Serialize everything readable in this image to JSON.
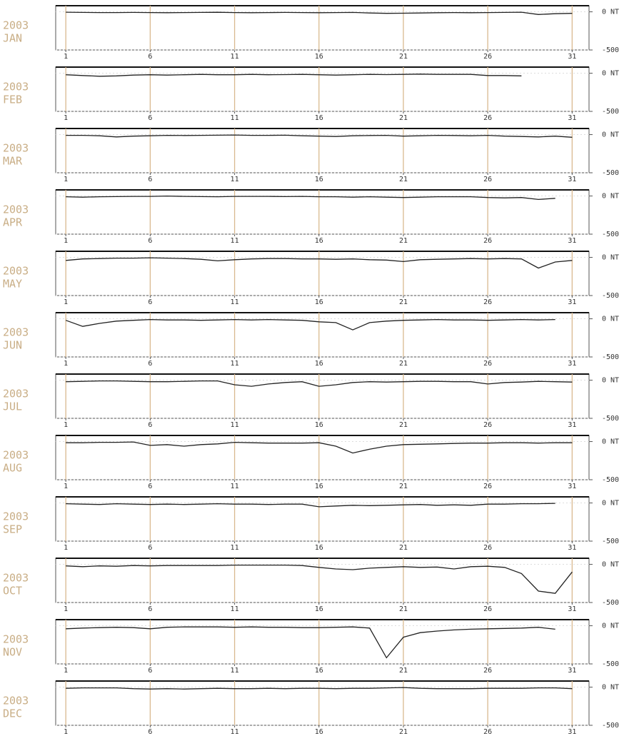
{
  "chart_data": [
    {
      "type": "line",
      "year": "2003",
      "title": "JAN",
      "color": "#222222",
      "xlim": [
        0.4,
        32
      ],
      "ylim": [
        -500,
        80
      ],
      "xticks": [
        1,
        6,
        11,
        16,
        21,
        26,
        31
      ],
      "yticks": [
        {
          "value": 0,
          "label": "0 NT"
        },
        {
          "value": -500,
          "label": "-500"
        }
      ],
      "grid": true,
      "x": [
        1,
        2,
        3,
        4,
        5,
        6,
        7,
        8,
        9,
        10,
        11,
        12,
        13,
        14,
        15,
        16,
        17,
        18,
        19,
        20,
        21,
        22,
        23,
        24,
        25,
        26,
        27,
        28,
        29,
        30,
        31
      ],
      "values": [
        -5,
        -8,
        -10,
        -10,
        -8,
        -10,
        -12,
        -10,
        -8,
        -6,
        -10,
        -12,
        -10,
        -8,
        -10,
        -12,
        -10,
        -8,
        -15,
        -20,
        -18,
        -15,
        -12,
        -10,
        -12,
        -10,
        -8,
        -5,
        -35,
        -25,
        -20
      ]
    },
    {
      "type": "line",
      "year": "2003",
      "title": "FEB",
      "color": "#222222",
      "xlim": [
        0.4,
        32
      ],
      "ylim": [
        -500,
        80
      ],
      "xticks": [
        1,
        6,
        11,
        16,
        21,
        26,
        31
      ],
      "yticks": [
        {
          "value": 0,
          "label": "0 NT"
        },
        {
          "value": -500,
          "label": "-500"
        }
      ],
      "grid": true,
      "x": [
        1,
        2,
        3,
        4,
        5,
        6,
        7,
        8,
        9,
        10,
        11,
        12,
        13,
        14,
        15,
        16,
        17,
        18,
        19,
        20,
        21,
        22,
        23,
        24,
        25,
        26,
        27,
        28
      ],
      "values": [
        -20,
        -30,
        -40,
        -35,
        -25,
        -20,
        -25,
        -20,
        -15,
        -20,
        -20,
        -15,
        -20,
        -18,
        -15,
        -20,
        -25,
        -20,
        -15,
        -18,
        -15,
        -12,
        -15,
        -15,
        -15,
        -30,
        -30,
        -35
      ]
    },
    {
      "type": "line",
      "year": "2003",
      "title": "MAR",
      "color": "#222222",
      "xlim": [
        0.4,
        32
      ],
      "ylim": [
        -500,
        80
      ],
      "xticks": [
        1,
        6,
        11,
        16,
        21,
        26,
        31
      ],
      "yticks": [
        {
          "value": 0,
          "label": "0 NT"
        },
        {
          "value": -500,
          "label": "-500"
        }
      ],
      "grid": true,
      "x": [
        1,
        2,
        3,
        4,
        5,
        6,
        7,
        8,
        9,
        10,
        11,
        12,
        13,
        14,
        15,
        16,
        17,
        18,
        19,
        20,
        21,
        22,
        23,
        24,
        25,
        26,
        27,
        28,
        29,
        30,
        31
      ],
      "values": [
        -10,
        -10,
        -15,
        -30,
        -20,
        -15,
        -10,
        -12,
        -10,
        -8,
        -5,
        -10,
        -10,
        -8,
        -15,
        -20,
        -25,
        -15,
        -12,
        -10,
        -20,
        -15,
        -10,
        -12,
        -15,
        -10,
        -20,
        -25,
        -30,
        -20,
        -35
      ]
    },
    {
      "type": "line",
      "year": "2003",
      "title": "APR",
      "color": "#222222",
      "xlim": [
        0.4,
        32
      ],
      "ylim": [
        -500,
        80
      ],
      "xticks": [
        1,
        6,
        11,
        16,
        21,
        26,
        31
      ],
      "yticks": [
        {
          "value": 0,
          "label": "0 NT"
        },
        {
          "value": -500,
          "label": "-500"
        }
      ],
      "grid": true,
      "x": [
        1,
        2,
        3,
        4,
        5,
        6,
        7,
        8,
        9,
        10,
        11,
        12,
        13,
        14,
        15,
        16,
        17,
        18,
        19,
        20,
        21,
        22,
        23,
        24,
        25,
        26,
        27,
        28,
        29,
        30
      ],
      "values": [
        -10,
        -15,
        -10,
        -8,
        -5,
        -5,
        0,
        -5,
        -8,
        -10,
        -5,
        -5,
        -5,
        -8,
        -5,
        -10,
        -10,
        -15,
        -10,
        -15,
        -20,
        -15,
        -10,
        -10,
        -10,
        -20,
        -25,
        -20,
        -45,
        -30
      ]
    },
    {
      "type": "line",
      "year": "2003",
      "title": "MAY",
      "color": "#222222",
      "xlim": [
        0.4,
        32
      ],
      "ylim": [
        -500,
        80
      ],
      "xticks": [
        1,
        6,
        11,
        16,
        21,
        26,
        31
      ],
      "yticks": [
        {
          "value": 0,
          "label": "0 NT"
        },
        {
          "value": -500,
          "label": "-500"
        }
      ],
      "grid": true,
      "x": [
        1,
        2,
        3,
        4,
        5,
        6,
        7,
        8,
        9,
        10,
        11,
        12,
        13,
        14,
        15,
        16,
        17,
        18,
        19,
        20,
        21,
        22,
        23,
        24,
        25,
        26,
        27,
        28,
        29,
        30,
        31
      ],
      "values": [
        -40,
        -20,
        -15,
        -10,
        -10,
        -5,
        -10,
        -15,
        -25,
        -45,
        -30,
        -20,
        -15,
        -15,
        -20,
        -20,
        -25,
        -20,
        -30,
        -35,
        -55,
        -30,
        -25,
        -20,
        -15,
        -20,
        -15,
        -20,
        -140,
        -60,
        -40
      ]
    },
    {
      "type": "line",
      "year": "2003",
      "title": "JUN",
      "color": "#222222",
      "xlim": [
        0.4,
        32
      ],
      "ylim": [
        -500,
        80
      ],
      "xticks": [
        1,
        6,
        11,
        16,
        21,
        26,
        31
      ],
      "yticks": [
        {
          "value": 0,
          "label": "0 NT"
        },
        {
          "value": -500,
          "label": "-500"
        }
      ],
      "grid": true,
      "x": [
        1,
        2,
        3,
        4,
        5,
        6,
        7,
        8,
        9,
        10,
        11,
        12,
        13,
        14,
        15,
        16,
        17,
        18,
        19,
        20,
        21,
        22,
        23,
        24,
        25,
        26,
        27,
        28,
        29,
        30
      ],
      "values": [
        -20,
        -100,
        -60,
        -30,
        -20,
        -10,
        -15,
        -15,
        -20,
        -15,
        -10,
        -15,
        -10,
        -15,
        -20,
        -40,
        -50,
        -145,
        -50,
        -30,
        -20,
        -15,
        -10,
        -15,
        -15,
        -20,
        -15,
        -10,
        -15,
        -10
      ]
    },
    {
      "type": "line",
      "year": "2003",
      "title": "JUL",
      "color": "#222222",
      "xlim": [
        0.4,
        32
      ],
      "ylim": [
        -500,
        80
      ],
      "xticks": [
        1,
        6,
        11,
        16,
        21,
        26,
        31
      ],
      "yticks": [
        {
          "value": 0,
          "label": "0 NT"
        },
        {
          "value": -500,
          "label": "-500"
        }
      ],
      "grid": true,
      "x": [
        1,
        2,
        3,
        4,
        5,
        6,
        7,
        8,
        9,
        10,
        11,
        12,
        13,
        14,
        15,
        16,
        17,
        18,
        19,
        20,
        21,
        22,
        23,
        24,
        25,
        26,
        27,
        28,
        29,
        30,
        31
      ],
      "values": [
        -20,
        -15,
        -10,
        -10,
        -15,
        -20,
        -20,
        -15,
        -10,
        -10,
        -60,
        -80,
        -50,
        -30,
        -20,
        -80,
        -60,
        -30,
        -20,
        -25,
        -20,
        -15,
        -15,
        -20,
        -20,
        -50,
        -30,
        -25,
        -15,
        -20,
        -25
      ]
    },
    {
      "type": "line",
      "year": "2003",
      "title": "AUG",
      "color": "#222222",
      "xlim": [
        0.4,
        32
      ],
      "ylim": [
        -500,
        80
      ],
      "xticks": [
        1,
        6,
        11,
        16,
        21,
        26,
        31
      ],
      "yticks": [
        {
          "value": 0,
          "label": "0 NT"
        },
        {
          "value": -500,
          "label": "-500"
        }
      ],
      "grid": true,
      "x": [
        1,
        2,
        3,
        4,
        5,
        6,
        7,
        8,
        9,
        10,
        11,
        12,
        13,
        14,
        15,
        16,
        17,
        18,
        19,
        20,
        21,
        22,
        23,
        24,
        25,
        26,
        27,
        28,
        29,
        30,
        31
      ],
      "values": [
        -15,
        -15,
        -10,
        -10,
        -5,
        -50,
        -40,
        -60,
        -40,
        -30,
        -10,
        -15,
        -20,
        -20,
        -20,
        -15,
        -60,
        -150,
        -100,
        -60,
        -40,
        -35,
        -30,
        -25,
        -20,
        -20,
        -15,
        -15,
        -20,
        -15,
        -15
      ]
    },
    {
      "type": "line",
      "year": "2003",
      "title": "SEP",
      "color": "#222222",
      "xlim": [
        0.4,
        32
      ],
      "ylim": [
        -500,
        80
      ],
      "xticks": [
        1,
        6,
        11,
        16,
        21,
        26,
        31
      ],
      "yticks": [
        {
          "value": 0,
          "label": "0 NT"
        },
        {
          "value": -500,
          "label": "-500"
        }
      ],
      "grid": true,
      "x": [
        1,
        2,
        3,
        4,
        5,
        6,
        7,
        8,
        9,
        10,
        11,
        12,
        13,
        14,
        15,
        16,
        17,
        18,
        19,
        20,
        21,
        22,
        23,
        24,
        25,
        26,
        27,
        28,
        29,
        30
      ],
      "values": [
        -10,
        -15,
        -20,
        -10,
        -15,
        -20,
        -15,
        -20,
        -15,
        -10,
        -15,
        -15,
        -20,
        -15,
        -15,
        -50,
        -40,
        -30,
        -35,
        -30,
        -25,
        -20,
        -30,
        -25,
        -30,
        -15,
        -15,
        -10,
        -10,
        -5
      ]
    },
    {
      "type": "line",
      "year": "2003",
      "title": "OCT",
      "color": "#222222",
      "xlim": [
        0.4,
        32
      ],
      "ylim": [
        -500,
        80
      ],
      "xticks": [
        1,
        6,
        11,
        16,
        21,
        26,
        31
      ],
      "yticks": [
        {
          "value": 0,
          "label": "0 NT"
        },
        {
          "value": -500,
          "label": "-500"
        }
      ],
      "grid": true,
      "x": [
        1,
        2,
        3,
        4,
        5,
        6,
        7,
        8,
        9,
        10,
        11,
        12,
        13,
        14,
        15,
        16,
        17,
        18,
        19,
        20,
        21,
        22,
        23,
        24,
        25,
        26,
        27,
        28,
        29,
        30,
        31
      ],
      "values": [
        -20,
        -30,
        -20,
        -25,
        -15,
        -20,
        -15,
        -15,
        -15,
        -15,
        -10,
        -10,
        -10,
        -10,
        -15,
        -40,
        -60,
        -70,
        -50,
        -40,
        -30,
        -40,
        -35,
        -60,
        -30,
        -25,
        -40,
        -120,
        -350,
        -380,
        -100
      ]
    },
    {
      "type": "line",
      "year": "2003",
      "title": "NOV",
      "color": "#222222",
      "xlim": [
        0.4,
        32
      ],
      "ylim": [
        -500,
        80
      ],
      "xticks": [
        1,
        6,
        11,
        16,
        21,
        26,
        31
      ],
      "yticks": [
        {
          "value": 0,
          "label": "0 NT"
        },
        {
          "value": -500,
          "label": "-500"
        }
      ],
      "grid": true,
      "x": [
        1,
        2,
        3,
        4,
        5,
        6,
        7,
        8,
        9,
        10,
        11,
        12,
        13,
        14,
        15,
        16,
        17,
        18,
        19,
        20,
        21,
        22,
        23,
        24,
        25,
        26,
        27,
        28,
        29,
        30
      ],
      "values": [
        -40,
        -30,
        -25,
        -20,
        -25,
        -40,
        -20,
        -15,
        -15,
        -15,
        -20,
        -15,
        -20,
        -20,
        -25,
        -25,
        -20,
        -15,
        -30,
        -420,
        -150,
        -90,
        -70,
        -55,
        -45,
        -40,
        -35,
        -30,
        -20,
        -45
      ]
    },
    {
      "type": "line",
      "year": "2003",
      "title": "DEC",
      "color": "#222222",
      "xlim": [
        0.4,
        32
      ],
      "ylim": [
        -500,
        80
      ],
      "xticks": [
        1,
        6,
        11,
        16,
        21,
        26,
        31
      ],
      "yticks": [
        {
          "value": 0,
          "label": "0 NT"
        },
        {
          "value": -500,
          "label": "-500"
        }
      ],
      "grid": true,
      "x": [
        1,
        2,
        3,
        4,
        5,
        6,
        7,
        8,
        9,
        10,
        11,
        12,
        13,
        14,
        15,
        16,
        17,
        18,
        19,
        20,
        21,
        22,
        23,
        24,
        25,
        26,
        27,
        28,
        29,
        30,
        31
      ],
      "values": [
        -15,
        -10,
        -10,
        -10,
        -20,
        -25,
        -20,
        -25,
        -20,
        -15,
        -20,
        -20,
        -15,
        -20,
        -15,
        -15,
        -20,
        -15,
        -15,
        -10,
        -5,
        -15,
        -20,
        -20,
        -20,
        -15,
        -15,
        -15,
        -10,
        -10,
        -20
      ]
    }
  ]
}
